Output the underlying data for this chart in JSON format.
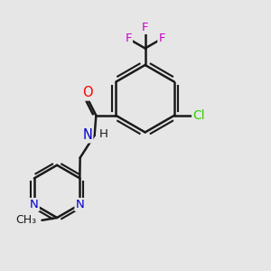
{
  "background_color": "#e6e6e6",
  "bond_color": "#1a1a1a",
  "bond_width": 1.8,
  "atom_colors": {
    "O": "#ff0000",
    "N": "#0000cc",
    "Cl": "#33cc00",
    "F": "#cc00cc",
    "C": "#1a1a1a",
    "H": "#1a1a1a"
  },
  "font_size": 9.5
}
